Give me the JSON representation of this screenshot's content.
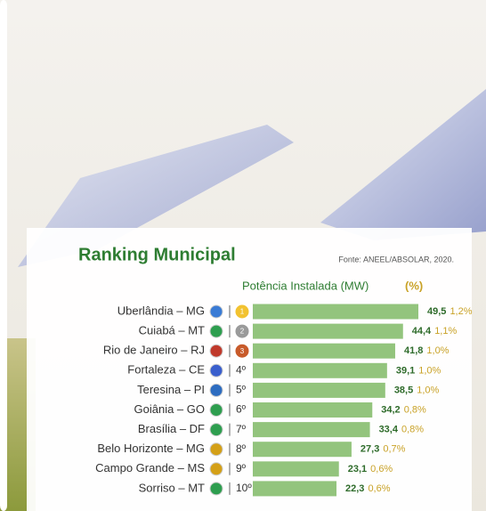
{
  "chart_data": {
    "type": "bar",
    "title": "Ranking Municipal",
    "source": "Fonte: ANEEL/ABSOLAR, 2020.",
    "header": "Potência Instalada (MW)",
    "header_unit": "(%)",
    "categories": [
      "Uberlândia – MG",
      "Cuiabá – MT",
      "Rio de Janeiro – RJ",
      "Fortaleza – CE",
      "Teresina – PI",
      "Goiânia – GO",
      "Brasília – DF",
      "Belo Horizonte – MG",
      "Campo Grande – MS",
      "Sorriso – MT"
    ],
    "ranks": [
      "1",
      "2",
      "3",
      "4º",
      "5º",
      "6º",
      "7º",
      "8º",
      "9º",
      "10º"
    ],
    "series": [
      {
        "name": "Potência Instalada (MW)",
        "color": "#93c47d",
        "values": [
          49.5,
          44.4,
          41.8,
          39.1,
          38.5,
          34.2,
          33.4,
          27.3,
          23.1,
          22.3
        ],
        "value_labels": [
          "49,5",
          "44,4",
          "41,8",
          "39,1",
          "38,5",
          "34,2",
          "33,4",
          "27,3",
          "23,1",
          "22,3"
        ]
      },
      {
        "name": "(%)",
        "color": "#c9a227",
        "values": [
          1.2,
          1.1,
          1.0,
          1.0,
          1.0,
          0.8,
          0.8,
          0.7,
          0.6,
          0.6
        ],
        "value_labels": [
          "1,2%",
          "1,1%",
          "1,0%",
          "1,0%",
          "1,0%",
          "0,8%",
          "0,8%",
          "0,7%",
          "0,6%",
          "0,6%"
        ]
      }
    ],
    "xlim": [
      -5.5,
      56
    ]
  }
}
